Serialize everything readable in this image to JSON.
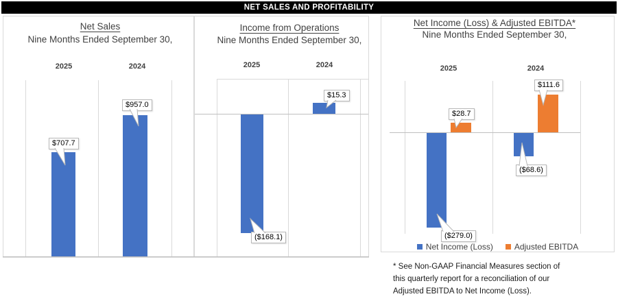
{
  "header": {
    "title": "NET SALES AND PROFITABILITY"
  },
  "chart_data": [
    {
      "type": "bar",
      "title": "Net Sales",
      "subtitle": "Nine Months Ended September 30,",
      "categories": [
        "2025",
        "2024"
      ],
      "values": [
        707.7,
        957.0
      ],
      "data_labels": [
        "$707.7",
        "$957.0"
      ],
      "bar_color": "#4472C4",
      "ylim": [
        0,
        1200
      ],
      "grid": "vertical-category-separators"
    },
    {
      "type": "bar",
      "title": "Income from Operations",
      "subtitle": "Nine Months Ended September 30,",
      "categories": [
        "2025",
        "2024"
      ],
      "values": [
        -168.1,
        15.3
      ],
      "data_labels": [
        "($168.1)",
        "$15.3"
      ],
      "bar_color": "#4472C4",
      "ylim": [
        -200,
        50
      ],
      "grid": "vertical-category-separators"
    },
    {
      "type": "bar",
      "title": "Net Income (Loss) & Adjusted EBITDA*",
      "subtitle": "Nine Months Ended September 30,",
      "categories": [
        "2025",
        "2024"
      ],
      "series": [
        {
          "name": "Net Income (Loss)",
          "color": "#4472C4",
          "values": [
            -279.0,
            -68.6
          ],
          "data_labels": [
            "($279.0)",
            "($68.6)"
          ]
        },
        {
          "name": "Adjusted EBITDA",
          "color": "#ED7D31",
          "values": [
            28.7,
            111.6
          ],
          "data_labels": [
            "$28.7",
            "$111.6"
          ]
        }
      ],
      "legend_position": "bottom",
      "ylim": [
        -300,
        150
      ],
      "grid": "vertical-category-separators"
    }
  ],
  "footnote": {
    "lines": [
      "* See Non-GAAP Financial Measures section of",
      "this quarterly report for a reconciliation of our",
      "Adjusted EBITDA to Net Income (Loss)."
    ]
  }
}
